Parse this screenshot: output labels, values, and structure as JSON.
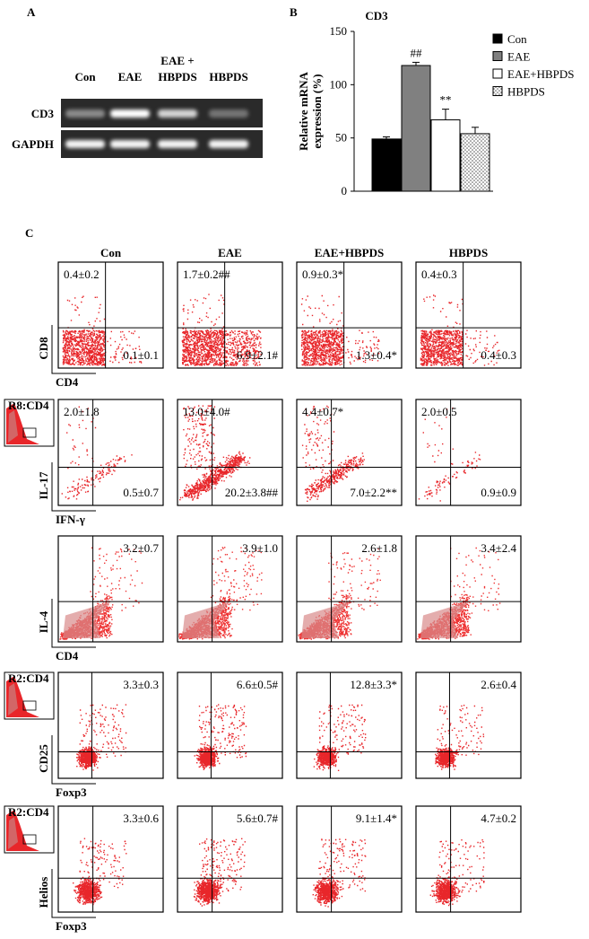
{
  "panel_labels": [
    "A",
    "B",
    "C"
  ],
  "gel": {
    "lanes": [
      [
        "Con"
      ],
      [
        "EAE"
      ],
      [
        "EAE +",
        "HBPDS"
      ],
      [
        "HBPDS"
      ]
    ],
    "rows": [
      "CD3",
      "GAPDH"
    ]
  },
  "chart_data": {
    "type": "bar",
    "title": "CD3",
    "ylabel": [
      "Relative mRNA",
      "expression (%)"
    ],
    "categories": [
      "Con",
      "EAE",
      "EAE+HBPDS",
      "HBPDS"
    ],
    "values": [
      49,
      118,
      67,
      54
    ],
    "errors": [
      2,
      3,
      10,
      6
    ],
    "annotations": [
      null,
      "##",
      "**",
      null
    ],
    "colors": [
      "#000000",
      "#808080",
      "#ffffff",
      "#ffffff"
    ],
    "fills": [
      "solid",
      "solid",
      "solid",
      "dots"
    ],
    "ylim": [
      0,
      150
    ],
    "yticks": [
      0,
      50,
      100,
      150
    ],
    "legend": "right"
  },
  "flow": {
    "columns": [
      "Con",
      "EAE",
      "EAE+HBPDS",
      "HBPDS"
    ],
    "rows": [
      {
        "ylabel": "CD8",
        "xlabel": "CD4",
        "upper_left": [
          "0.4±0.2",
          "1.7±0.2##",
          "0.9±0.3*",
          "0.4±0.3"
        ],
        "lower_right": [
          "0.1±0.1",
          "6.9±2.1#",
          "1.3±0.4*",
          "0.4±0.3"
        ]
      },
      {
        "ylabel": "IL-17",
        "xlabel": "IFN-γ",
        "gate": "R8:CD4",
        "upper_left": [
          "2.0±1.8",
          "13.0±4.0#",
          "4.4±0.7*",
          "2.0±0.5"
        ],
        "lower_right": [
          "0.5±0.7",
          "20.2±3.8##",
          "7.0±2.2**",
          "0.9±0.9"
        ]
      },
      {
        "ylabel": "IL-4",
        "xlabel": "CD4",
        "upper_right": [
          "3.2±0.7",
          "3.9±1.0",
          "2.6±1.8",
          "3.4±2.4"
        ]
      },
      {
        "ylabel": "CD25",
        "xlabel": "Foxp3",
        "gate": "R2:CD4",
        "upper_right": [
          "3.3±0.3",
          "6.6±0.5#",
          "12.8±3.3*",
          "2.6±0.4"
        ]
      },
      {
        "ylabel": "Helios",
        "xlabel": "Foxp3",
        "gate": "R2:CD4",
        "upper_right": [
          "3.3±0.6",
          "5.6±0.7#",
          "9.1±1.4*",
          "4.7±0.2"
        ]
      }
    ]
  }
}
